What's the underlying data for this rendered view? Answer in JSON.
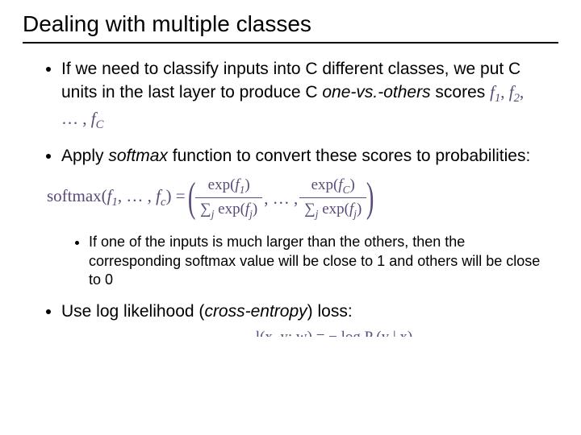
{
  "title": "Dealing with multiple classes",
  "b1_a": "If we need to classify inputs into C different classes, we put C units in the last layer to produce C ",
  "b1_i": "one-vs.-others",
  "b1_b": " scores ",
  "b1_m": "f₁, f₂, … , f_C",
  "b2_a": "Apply ",
  "b2_i": "softmax",
  "b2_b": " function to convert these scores to probabilities:",
  "sm_lhs": "softmax(f₁, … , f_c) = ",
  "sm_num1": "exp(f₁)",
  "sm_den": "∑ⱼ exp(fⱼ)",
  "sm_mid": ", … ,",
  "sm_num2": "exp(f_C)",
  "sub1": "If one of the inputs is much larger than the others, then the corresponding softmax value will be close to 1 and others will be close to 0",
  "b3_a": "Use log likelihood (",
  "b3_i": "cross-entropy",
  "b3_b": ") loss:",
  "cut": "l(x, y; w) = − log P (y | x)",
  "colors": {
    "math": "#5a4a7a",
    "text": "#000000",
    "bg": "#ffffff"
  },
  "fonts": {
    "body": "Arial",
    "math": "Cambria Math"
  }
}
